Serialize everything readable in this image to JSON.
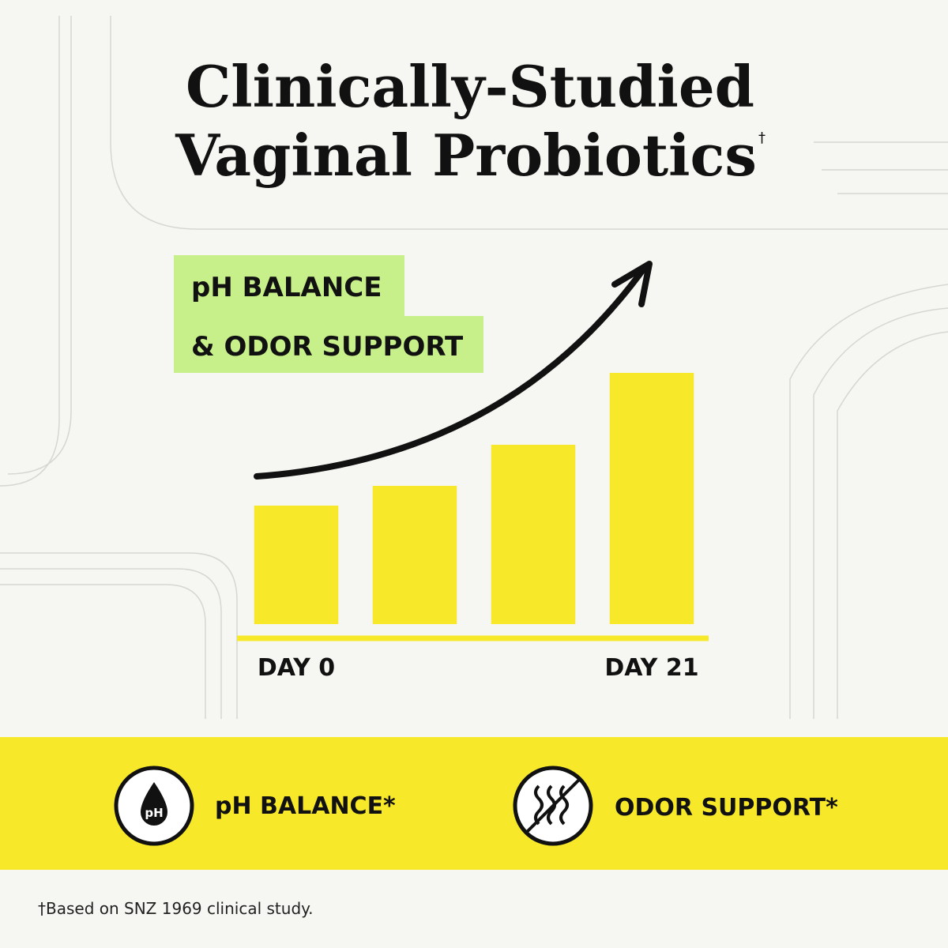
{
  "title": [
    "Clinically-Studied",
    "Vaginal Probiotics"
  ],
  "title_mark": "†",
  "callout": [
    "pH BALANCE",
    "& ODOR SUPPORT"
  ],
  "chart_data": {
    "type": "bar",
    "categories": [
      "DAY 0",
      null,
      null,
      "DAY 21"
    ],
    "values": [
      150,
      175,
      227,
      318
    ],
    "color": "#f7e82a",
    "ylim": [
      0,
      330
    ]
  },
  "features": [
    {
      "icon_label": "pH",
      "label": "pH BALANCE*"
    },
    {
      "label": "ODOR SUPPORT*"
    }
  ],
  "footnote": "†Based on SNZ 1969 clinical study."
}
